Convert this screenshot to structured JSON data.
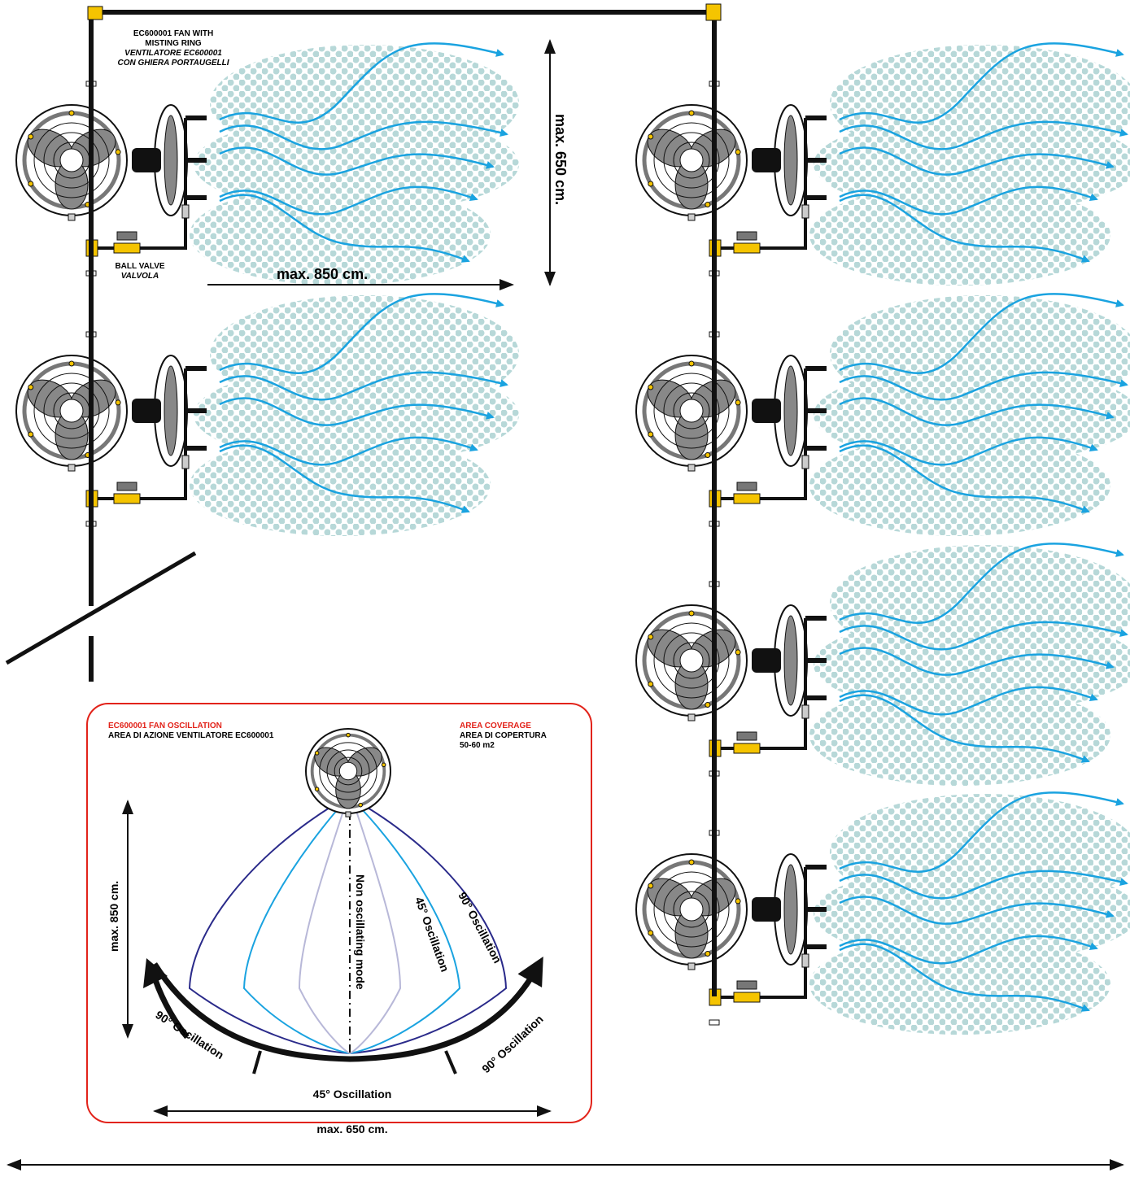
{
  "fan_label": {
    "line1": "EC600001 FAN WITH",
    "line2": "MISTING RING",
    "line3": "VENTILATORE EC600001",
    "line4": "CON GHIERA PORTAUGELLI"
  },
  "valve_label": {
    "line1": "BALL VALVE",
    "line2": "VALVOLA"
  },
  "dimensions": {
    "length": "max. 850 cm.",
    "spacing": "max. 650 cm."
  },
  "inset": {
    "title": "EC600001 FAN OSCILLATION",
    "subtitle": "AREA DI AZIONE VENTILATORE EC600001",
    "coverage_title": "AREA COVERAGE",
    "coverage_subtitle": "AREA DI COPERTURA",
    "coverage_value": "50-60 m2",
    "depth": "max. 850 cm.",
    "non_oscillating": "Non oscillating mode",
    "oscillation_45": "45° Oscillation",
    "oscillation_90": "90° Oscillation",
    "arc_left": "90° Oscillation",
    "arc_middle": "45° Oscillation",
    "arc_right": "90° Oscillation",
    "width": "max. 650 cm."
  }
}
